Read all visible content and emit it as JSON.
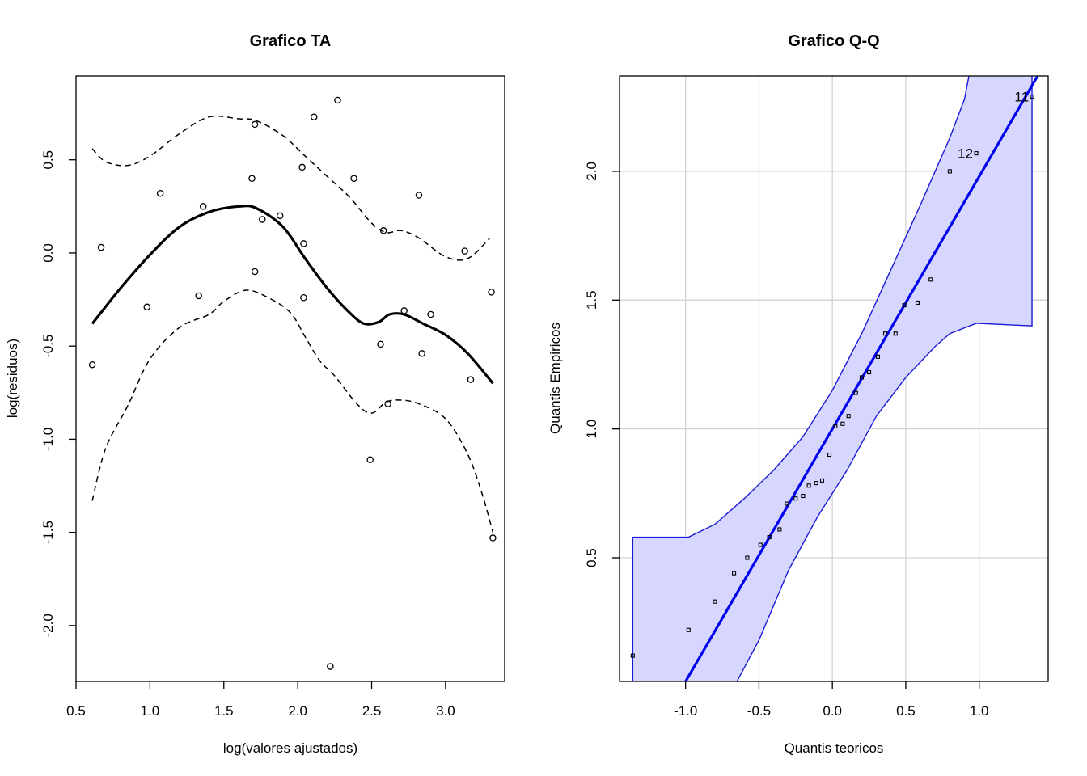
{
  "chart_data": [
    {
      "type": "scatter",
      "title": "Grafico TA",
      "xlabel": "log(valores ajustados)",
      "ylabel": "log(residuos)",
      "xlim": [
        0.5,
        3.4
      ],
      "ylim": [
        -2.3,
        0.95
      ],
      "xticks": [
        0.5,
        1.0,
        1.5,
        2.0,
        2.5,
        3.0
      ],
      "xtick_labels": [
        "0.5",
        "1.0",
        "1.5",
        "2.0",
        "2.5",
        "3.0"
      ],
      "yticks": [
        -2.0,
        -1.5,
        -1.0,
        -0.5,
        0.0,
        0.5
      ],
      "ytick_labels": [
        "-2.0",
        "-1.5",
        "-1.0",
        "-0.5",
        "0.0",
        "0.5"
      ],
      "grid": false,
      "points": {
        "x": [
          0.61,
          0.67,
          0.98,
          1.07,
          1.33,
          1.36,
          1.69,
          1.71,
          1.71,
          1.76,
          1.88,
          2.03,
          2.04,
          2.04,
          2.11,
          2.22,
          2.27,
          2.38,
          2.49,
          2.56,
          2.58,
          2.61,
          2.72,
          2.82,
          2.84,
          2.9,
          3.13,
          3.17,
          3.31,
          3.32
        ],
        "y": [
          -0.6,
          0.03,
          -0.29,
          0.32,
          -0.23,
          0.25,
          0.4,
          0.69,
          -0.1,
          0.18,
          0.2,
          0.46,
          0.05,
          -0.24,
          0.73,
          -2.22,
          0.82,
          0.4,
          -1.11,
          -0.49,
          0.12,
          -0.81,
          -0.31,
          0.31,
          -0.54,
          -0.33,
          0.01,
          -0.68,
          -0.21,
          -1.53
        ]
      },
      "smooth": {
        "x": [
          0.61,
          0.8,
          1.0,
          1.2,
          1.4,
          1.6,
          1.72,
          1.9,
          2.05,
          2.2,
          2.35,
          2.45,
          2.55,
          2.62,
          2.72,
          2.85,
          3.0,
          3.15,
          3.32
        ],
        "y": [
          -0.38,
          -0.19,
          -0.01,
          0.14,
          0.22,
          0.25,
          0.24,
          0.14,
          -0.03,
          -0.19,
          -0.32,
          -0.38,
          -0.37,
          -0.33,
          -0.33,
          -0.38,
          -0.44,
          -0.54,
          -0.7
        ]
      },
      "upper_band": {
        "x": [
          0.61,
          0.7,
          0.85,
          1.0,
          1.2,
          1.4,
          1.6,
          1.72,
          1.9,
          2.05,
          2.2,
          2.35,
          2.5,
          2.6,
          2.7,
          2.82,
          3.0,
          3.15,
          3.3
        ],
        "y": [
          0.56,
          0.49,
          0.47,
          0.52,
          0.64,
          0.73,
          0.72,
          0.71,
          0.63,
          0.52,
          0.41,
          0.3,
          0.16,
          0.11,
          0.12,
          0.08,
          -0.02,
          -0.03,
          0.08
        ]
      },
      "lower_band": {
        "x": [
          0.61,
          0.7,
          0.85,
          1.0,
          1.2,
          1.4,
          1.5,
          1.65,
          1.8,
          1.95,
          2.05,
          2.15,
          2.25,
          2.4,
          2.5,
          2.6,
          2.7,
          2.82,
          3.0,
          3.15,
          3.25,
          3.32
        ],
        "y": [
          -1.33,
          -1.05,
          -0.82,
          -0.57,
          -0.4,
          -0.33,
          -0.26,
          -0.2,
          -0.24,
          -0.32,
          -0.45,
          -0.58,
          -0.66,
          -0.81,
          -0.86,
          -0.8,
          -0.79,
          -0.81,
          -0.89,
          -1.08,
          -1.3,
          -1.5
        ]
      }
    },
    {
      "type": "scatter",
      "title": "Grafico Q-Q",
      "xlabel": "Quantis teoricos",
      "ylabel": "Quantis Empiricos",
      "xlim": [
        -1.45,
        1.47
      ],
      "ylim": [
        0.02,
        2.37
      ],
      "xticks": [
        -1.0,
        -0.5,
        0.0,
        0.5,
        1.0
      ],
      "xtick_labels": [
        "-1.0",
        "-0.5",
        "0.0",
        "0.5",
        "1.0"
      ],
      "yticks": [
        0.5,
        1.0,
        1.5,
        2.0
      ],
      "ytick_labels": [
        "0.5",
        "1.0",
        "1.5",
        "2.0"
      ],
      "grid": true,
      "points": {
        "x": [
          -1.36,
          -0.98,
          -0.8,
          -0.67,
          -0.58,
          -0.49,
          -0.43,
          -0.36,
          -0.31,
          -0.25,
          -0.2,
          -0.16,
          -0.11,
          -0.07,
          -0.02,
          0.02,
          0.07,
          0.11,
          0.16,
          0.2,
          0.25,
          0.31,
          0.36,
          0.43,
          0.49,
          0.58,
          0.67,
          0.8,
          0.98,
          1.36
        ],
        "y": [
          0.12,
          0.22,
          0.33,
          0.44,
          0.5,
          0.55,
          0.58,
          0.61,
          0.71,
          0.73,
          0.74,
          0.78,
          0.79,
          0.8,
          0.9,
          1.01,
          1.02,
          1.05,
          1.14,
          1.2,
          1.22,
          1.28,
          1.37,
          1.37,
          1.48,
          1.49,
          1.58,
          2.0,
          2.07,
          2.29
        ]
      },
      "reference_line": {
        "intercept": 1.0,
        "slope": 0.98
      },
      "envelope_upper": {
        "x": [
          -1.36,
          -0.98,
          -0.8,
          -0.6,
          -0.4,
          -0.2,
          0.0,
          0.2,
          0.4,
          0.6,
          0.8,
          0.9,
          0.93
        ],
        "y": [
          0.58,
          0.58,
          0.63,
          0.73,
          0.84,
          0.97,
          1.15,
          1.37,
          1.62,
          1.87,
          2.13,
          2.28,
          2.37
        ]
      },
      "envelope_lower": {
        "x": [
          -0.65,
          -0.5,
          -0.3,
          -0.1,
          0.1,
          0.3,
          0.5,
          0.7,
          0.8,
          0.98,
          1.36
        ],
        "y": [
          0.02,
          0.18,
          0.45,
          0.66,
          0.84,
          1.05,
          1.2,
          1.32,
          1.37,
          1.41,
          1.4
        ]
      },
      "labeled_points": [
        {
          "label": "11",
          "x": 1.36,
          "y": 2.29
        },
        {
          "label": "12",
          "x": 0.98,
          "y": 2.07
        }
      ],
      "colors": {
        "line": "#0000ee",
        "band_fill": "#d6d6ff",
        "band_edge": "#1a1ad6"
      }
    }
  ]
}
